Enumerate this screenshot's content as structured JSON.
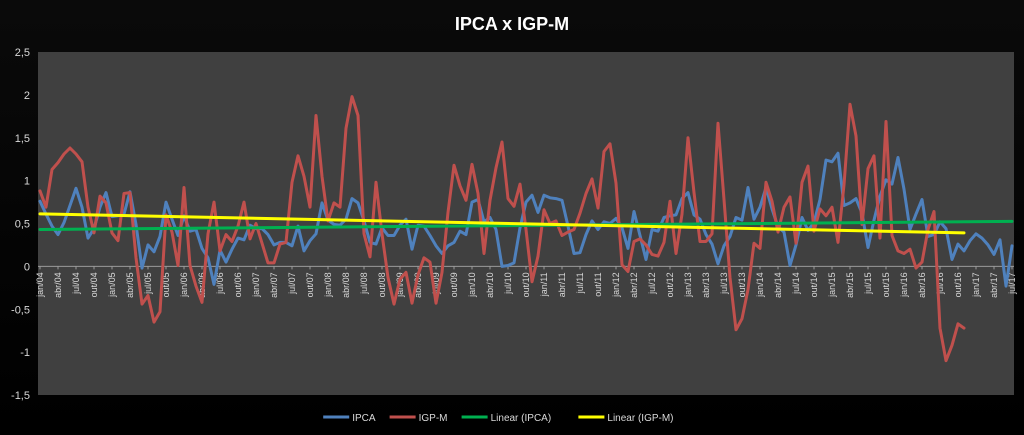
{
  "chart_data": {
    "type": "line",
    "title": "IPCA x IGP-M",
    "xlabel": "",
    "ylabel": "",
    "ylim": [
      -1.5,
      2.5
    ],
    "yticks": [
      "-1,5",
      "-1",
      "-0,5",
      "0",
      "0,5",
      "1",
      "1,5",
      "2",
      "2,5"
    ],
    "ytick_values": [
      -1.5,
      -1,
      -0.5,
      0,
      0.5,
      1,
      1.5,
      2,
      2.5
    ],
    "grid": false,
    "legend_position": "bottom",
    "start_month": "jan/04",
    "end_month": "jul/17",
    "x_tick_labels": [
      "jan/04",
      "abr/04",
      "jul/04",
      "out/04",
      "jan/05",
      "abr/05",
      "jul/05",
      "out/05",
      "jan/06",
      "abr/06",
      "jul/06",
      "out/06",
      "jan/07",
      "abr/07",
      "jul/07",
      "out/07",
      "jan/08",
      "abr/08",
      "jul/08",
      "out/08",
      "jan/09",
      "abr/09",
      "jul/09",
      "out/09",
      "jan/10",
      "abr/10",
      "jul/10",
      "out/10",
      "jan/11",
      "abr/11",
      "jul/11",
      "out/11",
      "jan/12",
      "abr/12",
      "jul/12",
      "out/12",
      "jan/13",
      "abr/13",
      "jul/13",
      "out/13",
      "jan/14",
      "abr/14",
      "jul/14",
      "out/14",
      "jan/15",
      "abr/15",
      "jul/15",
      "out/15",
      "jan/16",
      "abr/16",
      "jul/16",
      "out/16",
      "jan/17",
      "abr/17",
      "jul/17"
    ],
    "series": [
      {
        "name": "IPCA",
        "color": "#4f81bd",
        "values": [
          0.76,
          0.61,
          0.47,
          0.37,
          0.51,
          0.71,
          0.91,
          0.69,
          0.33,
          0.44,
          0.69,
          0.86,
          0.58,
          0.59,
          0.61,
          0.87,
          0.49,
          -0.02,
          0.25,
          0.17,
          0.35,
          0.75,
          0.55,
          0.36,
          0.59,
          0.41,
          0.43,
          0.21,
          0.1,
          -0.21,
          0.19,
          0.05,
          0.2,
          0.33,
          0.31,
          0.48,
          0.44,
          0.44,
          0.37,
          0.25,
          0.28,
          0.28,
          0.24,
          0.47,
          0.18,
          0.3,
          0.38,
          0.74,
          0.54,
          0.49,
          0.48,
          0.55,
          0.79,
          0.74,
          0.53,
          0.28,
          0.26,
          0.45,
          0.36,
          0.36,
          0.48,
          0.55,
          0.2,
          0.48,
          0.47,
          0.36,
          0.24,
          0.15,
          0.24,
          0.28,
          0.41,
          0.37,
          0.75,
          0.78,
          0.52,
          0.57,
          0.43,
          0.0,
          0.01,
          0.04,
          0.45,
          0.75,
          0.83,
          0.63,
          0.83,
          0.8,
          0.79,
          0.77,
          0.47,
          0.15,
          0.16,
          0.37,
          0.53,
          0.43,
          0.52,
          0.5,
          0.56,
          0.45,
          0.21,
          0.64,
          0.36,
          0.08,
          0.43,
          0.41,
          0.57,
          0.59,
          0.6,
          0.79,
          0.86,
          0.6,
          0.55,
          0.37,
          0.26,
          0.03,
          0.24,
          0.35,
          0.57,
          0.54,
          0.92,
          0.55,
          0.69,
          0.92,
          0.67,
          0.46,
          0.4,
          0.01,
          0.25,
          0.57,
          0.42,
          0.51,
          0.78,
          1.24,
          1.22,
          1.32,
          0.71,
          0.74,
          0.79,
          0.62,
          0.22,
          0.54,
          0.82,
          1.01,
          0.96,
          1.27,
          0.9,
          0.43,
          0.61,
          0.78,
          0.35,
          0.37,
          0.52,
          0.44,
          0.08,
          0.26,
          0.18,
          0.3,
          0.38,
          0.33,
          0.25,
          0.14,
          0.31,
          -0.23,
          0.24
        ]
      },
      {
        "name": "IGP-M",
        "color": "#c0504d",
        "values": [
          0.88,
          0.69,
          1.13,
          1.21,
          1.31,
          1.38,
          1.31,
          1.22,
          0.69,
          0.39,
          0.82,
          0.74,
          0.39,
          0.3,
          0.85,
          0.86,
          0.1,
          -0.44,
          -0.34,
          -0.65,
          -0.53,
          0.6,
          0.4,
          0.01,
          0.92,
          0.01,
          -0.23,
          -0.42,
          0.38,
          0.75,
          0.18,
          0.37,
          0.29,
          0.47,
          0.75,
          0.32,
          0.5,
          0.27,
          0.04,
          0.04,
          0.26,
          0.28,
          0.98,
          1.29,
          1.05,
          0.69,
          1.76,
          1.05,
          0.53,
          0.74,
          0.69,
          1.61,
          1.98,
          1.76,
          0.38,
          0.11,
          0.98,
          0.38,
          -0.13,
          -0.44,
          -0.15,
          -0.07,
          -0.43,
          -0.1,
          0.1,
          0.05,
          -0.43,
          -0.07,
          0.63,
          1.18,
          0.94,
          0.77,
          1.19,
          0.85,
          0.15,
          0.77,
          1.15,
          1.45,
          0.79,
          0.7,
          0.96,
          0.43,
          -0.18,
          0.12,
          0.66,
          0.5,
          0.53,
          0.36,
          0.4,
          0.43,
          0.62,
          0.85,
          1.02,
          0.68,
          1.34,
          1.43,
          0.97,
          0.02,
          -0.06,
          0.29,
          0.32,
          0.25,
          0.14,
          0.12,
          0.28,
          0.76,
          0.15,
          0.61,
          1.5,
          0.86,
          0.29,
          0.29,
          0.38,
          1.67,
          0.78,
          -0.13,
          -0.74,
          -0.61,
          -0.27,
          0.27,
          0.21,
          0.98,
          0.76,
          0.4,
          0.69,
          0.81,
          0.27,
          0.98,
          1.17,
          0.41,
          0.67,
          0.59,
          0.69,
          0.28,
          0.95,
          1.89,
          1.52,
          0.49,
          1.14,
          1.29,
          0.33,
          1.69,
          0.36,
          0.18,
          0.15,
          0.2,
          -0.02,
          0.05,
          0.43,
          0.64,
          -0.72,
          -1.1,
          -0.92,
          -0.67,
          -0.72
        ]
      },
      {
        "name": "Linear (IPCA)",
        "color": "#00b050",
        "trend_of": "IPCA"
      },
      {
        "name": "Linear (IGP-M)",
        "color": "#ffff00",
        "trend_of": "IGP-M"
      }
    ]
  },
  "colors": {
    "plot_background": "#404040",
    "page_background": "#000000"
  }
}
